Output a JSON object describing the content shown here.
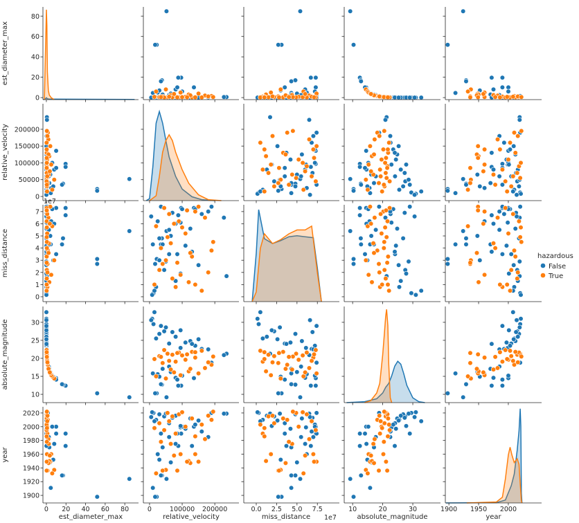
{
  "chart_data": {
    "type": "pairplot",
    "hue": "hazardous",
    "legend": {
      "title": "hazardous",
      "placement": "right",
      "entries": [
        {
          "label": "False",
          "color": "#1f77b4"
        },
        {
          "label": "True",
          "color": "#ff7f0e"
        }
      ]
    },
    "offset_text": "1e7",
    "variables": [
      {
        "name": "est_diameter_max",
        "xlim": [
          -3.5,
          94
        ],
        "ylim": [
          -2,
          89
        ],
        "xticks": [
          [
            0,
            "0"
          ],
          [
            20,
            "20"
          ],
          [
            40,
            "40"
          ],
          [
            60,
            "60"
          ],
          [
            80,
            "80"
          ]
        ],
        "yticks": [
          [
            0,
            "0"
          ],
          [
            20,
            "20"
          ],
          [
            40,
            "40"
          ],
          [
            60,
            "60"
          ],
          [
            80,
            "80"
          ]
        ]
      },
      {
        "name": "relative_velocity",
        "xlim": [
          -19000,
          274000
        ],
        "ylim": [
          -12400,
          276000
        ],
        "xticks": [
          [
            0,
            "0"
          ],
          [
            100000,
            "100000"
          ],
          [
            200000,
            "200000"
          ]
        ],
        "yticks": [
          [
            0,
            "0"
          ],
          [
            50000,
            "50000"
          ],
          [
            100000,
            "100000"
          ],
          [
            150000,
            "150000"
          ],
          [
            200000,
            "200000"
          ]
        ]
      },
      {
        "name": "miss_distance",
        "xlim": [
          -15300000,
          102000000
        ],
        "ylim": [
          -4000000,
          75600000
        ],
        "xticks": [
          [
            0,
            "0.0"
          ],
          [
            25000000,
            "2.5"
          ],
          [
            50000000,
            "5.0"
          ],
          [
            75000000,
            "7.5"
          ]
        ],
        "yticks": [
          [
            0,
            "0"
          ],
          [
            10000000,
            "1"
          ],
          [
            20000000,
            "2"
          ],
          [
            30000000,
            "3"
          ],
          [
            40000000,
            "4"
          ],
          [
            50000000,
            "5"
          ],
          [
            60000000,
            "6"
          ],
          [
            70000000,
            "7"
          ]
        ]
      },
      {
        "name": "absolute_magnitude",
        "xlim": [
          7.2,
          39.2
        ],
        "ylim": [
          7.7,
          34.4
        ],
        "xticks": [
          [
            10,
            "10"
          ],
          [
            20,
            "20"
          ],
          [
            30,
            "30"
          ]
        ],
        "yticks": [
          [
            10,
            "10"
          ],
          [
            15,
            "15"
          ],
          [
            20,
            "20"
          ],
          [
            25,
            "25"
          ],
          [
            30,
            "30"
          ]
        ]
      },
      {
        "name": "year",
        "xlim": [
          1894,
          2056
        ],
        "ylim": [
          1889,
          2029
        ],
        "xticks": [
          [
            1900,
            "1900"
          ],
          [
            1950,
            "1950"
          ],
          [
            2000,
            "2000"
          ]
        ],
        "yticks": [
          [
            1900,
            "1900"
          ],
          [
            1920,
            "1920"
          ],
          [
            1940,
            "1940"
          ],
          [
            1960,
            "1960"
          ],
          [
            1980,
            "1980"
          ],
          [
            2000,
            "2000"
          ],
          [
            2020,
            "2020"
          ]
        ]
      }
    ],
    "series": [
      {
        "name": "False",
        "color": "#1f77b4",
        "points": [
          [
            84.7,
            52000,
            54000000,
            9.2,
            1924
          ],
          [
            51.8,
            22000,
            31000000,
            10.3,
            1898
          ],
          [
            51.8,
            17000,
            27000000,
            10.3,
            1898
          ],
          [
            19.6,
            97000,
            73000000,
            12.4,
            1990
          ],
          [
            19.6,
            88000,
            67000000,
            12.4,
            1972
          ],
          [
            17.0,
            38000,
            48000000,
            12.7,
            1929
          ],
          [
            16.0,
            35000,
            43000000,
            12.8,
            1929
          ],
          [
            4.5,
            10000,
            43000000,
            15.8,
            1911
          ],
          [
            10,
            136000,
            73000000,
            14.5,
            2000
          ],
          [
            0.05,
            20000,
            8000000,
            25.5,
            2010
          ],
          [
            0.02,
            45000,
            22000000,
            27.5,
            2015
          ],
          [
            0.1,
            60000,
            35000000,
            24.1,
            2005
          ],
          [
            0.03,
            30000,
            48000000,
            26.8,
            2018
          ],
          [
            0.008,
            12000,
            3000000,
            29.5,
            2020
          ],
          [
            0.006,
            8000,
            1500000,
            31,
            2021
          ],
          [
            0.004,
            15000,
            5000000,
            32.8,
            2008
          ],
          [
            0.2,
            95000,
            61000000,
            22.9,
            1999
          ],
          [
            0.15,
            140000,
            72000000,
            23.5,
            2003
          ],
          [
            0.07,
            125000,
            56000000,
            24.8,
            2012
          ],
          [
            0.25,
            160000,
            68000000,
            22.6,
            1993
          ],
          [
            0.04,
            80000,
            13000000,
            26.0,
            2016
          ],
          [
            0.012,
            50000,
            29000000,
            28.6,
            2019
          ],
          [
            0.02,
            70000,
            69000000,
            27.3,
            2013
          ],
          [
            0.3,
            180000,
            70000000,
            22.5,
            1985
          ],
          [
            0.09,
            110000,
            42000000,
            24.4,
            1997
          ],
          [
            0.5,
            236000,
            17000000,
            21.3,
            2019
          ],
          [
            0.6,
            228000,
            65000000,
            20.9,
            2019
          ],
          [
            1.5,
            190000,
            74000000,
            18.8,
            2020
          ],
          [
            2.5,
            60000,
            55000000,
            17.7,
            1985
          ],
          [
            5,
            25000,
            62000000,
            15.6,
            1960
          ],
          [
            3,
            40000,
            43000000,
            17.1,
            1970
          ],
          [
            8,
            80000,
            60000000,
            14.6,
            1975
          ],
          [
            10,
            85000,
            35000000,
            14.1,
            1990
          ],
          [
            6,
            100000,
            72000000,
            15.2,
            2000
          ],
          [
            4,
            65000,
            50000000,
            16.2,
            1948
          ],
          [
            7,
            30000,
            30000000,
            14.9,
            1952
          ],
          [
            0.1,
            130000,
            37000000,
            24.0,
            1972
          ],
          [
            0.02,
            95000,
            19000000,
            27.8,
            2001
          ],
          [
            0.01,
            35000,
            74000000,
            29.0,
            1990
          ],
          [
            0.008,
            5000,
            66000000,
            30.6,
            2014
          ],
          [
            0.05,
            150000,
            26000000,
            25.3,
            2009
          ]
        ],
        "kde": [
          {
            "x": [
              -3,
              -1,
              0,
              1,
              3,
              90
            ],
            "density": [
              0,
              0.01,
              0.02,
              0.01,
              0.005,
              0.002
            ]
          },
          {
            "x": [
              -10000,
              0,
              10000,
              20000,
              30000,
              40000,
              50000,
              60000,
              80000,
              100000,
              130000,
              160000,
              200000
            ],
            "density": [
              0,
              0.02,
              0.35,
              0.8,
              0.92,
              0.8,
              0.62,
              0.45,
              0.25,
              0.12,
              0.04,
              0.01,
              0
            ]
          },
          {
            "x": [
              -5000000,
              0,
              3000000,
              6000000,
              10000000,
              20000000,
              30000000,
              40000000,
              50000000,
              60000000,
              70000000,
              75000000,
              80000000
            ],
            "density": [
              0,
              0.5,
              0.95,
              0.82,
              0.65,
              0.6,
              0.63,
              0.67,
              0.68,
              0.67,
              0.66,
              0.35,
              0
            ]
          },
          {
            "x": [
              8,
              14,
              18,
              20,
              21,
              22,
              23,
              24,
              25,
              26,
              27,
              28,
              30,
              32,
              34
            ],
            "density": [
              0,
              0.01,
              0.04,
              0.1,
              0.16,
              0.2,
              0.28,
              0.38,
              0.43,
              0.4,
              0.3,
              0.18,
              0.05,
              0.01,
              0
            ]
          },
          {
            "x": [
              1895,
              1980,
              1995,
              2005,
              2010,
              2015,
              2018,
              2020,
              2021,
              2022,
              2023
            ],
            "density": [
              0,
              0.003,
              0.03,
              0.18,
              0.3,
              0.55,
              0.75,
              0.98,
              0.8,
              0.1,
              0
            ]
          }
        ]
      },
      {
        "name": "True",
        "color": "#ff7f0e",
        "points": [
          [
            8,
            50000,
            30000000,
            14.4,
            1937
          ],
          [
            6,
            20000,
            58000000,
            15.0,
            1932
          ],
          [
            5,
            95000,
            18000000,
            15.3,
            1960
          ],
          [
            4,
            150000,
            74000000,
            15.8,
            1949
          ],
          [
            3,
            120000,
            12000000,
            16.4,
            1950
          ],
          [
            2.5,
            65000,
            44000000,
            16.9,
            1975
          ],
          [
            2,
            170000,
            65000000,
            17.3,
            1982
          ],
          [
            1.5,
            190000,
            38000000,
            18.2,
            2010
          ],
          [
            1.2,
            40000,
            27000000,
            18.7,
            1936
          ],
          [
            1.0,
            80000,
            8000000,
            19.1,
            1990
          ],
          [
            0.8,
            110000,
            52000000,
            19.6,
            2000
          ],
          [
            0.6,
            140000,
            70000000,
            20.2,
            1960
          ],
          [
            0.5,
            30000,
            22000000,
            20.6,
            2005
          ],
          [
            0.4,
            70000,
            15000000,
            21.0,
            2015
          ],
          [
            0.35,
            55000,
            49000000,
            21.3,
            2020
          ],
          [
            0.3,
            90000,
            62000000,
            21.6,
            2018
          ],
          [
            0.28,
            130000,
            33000000,
            21.8,
            2012
          ],
          [
            0.25,
            160000,
            5000000,
            22.1,
            2003
          ],
          [
            0.24,
            45000,
            73000000,
            22.3,
            1995
          ],
          [
            0.45,
            100000,
            57000000,
            20.8,
            2021
          ],
          [
            0.7,
            15000,
            10000000,
            19.8,
            1998
          ],
          [
            0.9,
            60000,
            68000000,
            19.3,
            2008
          ],
          [
            1.1,
            180000,
            20000000,
            18.9,
            2016
          ],
          [
            2.2,
            125000,
            36000000,
            17.1,
            1947
          ],
          [
            3.5,
            75000,
            60000000,
            16.1,
            1958
          ],
          [
            0.5,
            195000,
            45000000,
            20.5,
            2022
          ],
          [
            0.32,
            85000,
            28000000,
            21.5,
            1936
          ],
          [
            0.38,
            115000,
            71000000,
            21.1,
            1949
          ],
          [
            0.55,
            35000,
            40000000,
            20.4,
            1978
          ],
          [
            0.3,
            140000,
            10000000,
            21.7,
            1986
          ]
        ],
        "kde": [
          {
            "x": [
              -2,
              0,
              0.5,
              1,
              2,
              3,
              5,
              8
            ],
            "density": [
              0,
              0.97,
              0.8,
              0.3,
              0.1,
              0.05,
              0.02,
              0
            ]
          },
          {
            "x": [
              0,
              20000,
              30000,
              40000,
              50000,
              60000,
              70000,
              80000,
              100000,
              120000,
              150000,
              180000,
              220000
            ],
            "density": [
              0,
              0.05,
              0.25,
              0.5,
              0.62,
              0.68,
              0.62,
              0.5,
              0.32,
              0.18,
              0.06,
              0.01,
              0
            ]
          },
          {
            "x": [
              -5000000,
              0,
              5000000,
              10000000,
              20000000,
              30000000,
              40000000,
              50000000,
              60000000,
              68000000,
              75000000,
              80000000
            ],
            "density": [
              0,
              0.1,
              0.55,
              0.7,
              0.6,
              0.64,
              0.7,
              0.74,
              0.74,
              0.78,
              0.3,
              0
            ]
          },
          {
            "x": [
              14,
              16,
              18,
              19,
              20,
              20.5,
              21,
              21.3,
              21.7,
              22,
              22.5,
              23
            ],
            "density": [
              0,
              0.02,
              0.1,
              0.2,
              0.5,
              0.7,
              0.9,
              0.97,
              0.8,
              0.4,
              0.05,
              0
            ]
          },
          {
            "x": [
              1930,
              1980,
              1990,
              1995,
              2000,
              2003,
              2006,
              2010,
              2015,
              2018,
              2020,
              2022,
              2023
            ],
            "density": [
              0,
              0.01,
              0.06,
              0.25,
              0.5,
              0.58,
              0.5,
              0.42,
              0.46,
              0.4,
              0.2,
              0.02,
              0
            ]
          }
        ]
      }
    ]
  }
}
